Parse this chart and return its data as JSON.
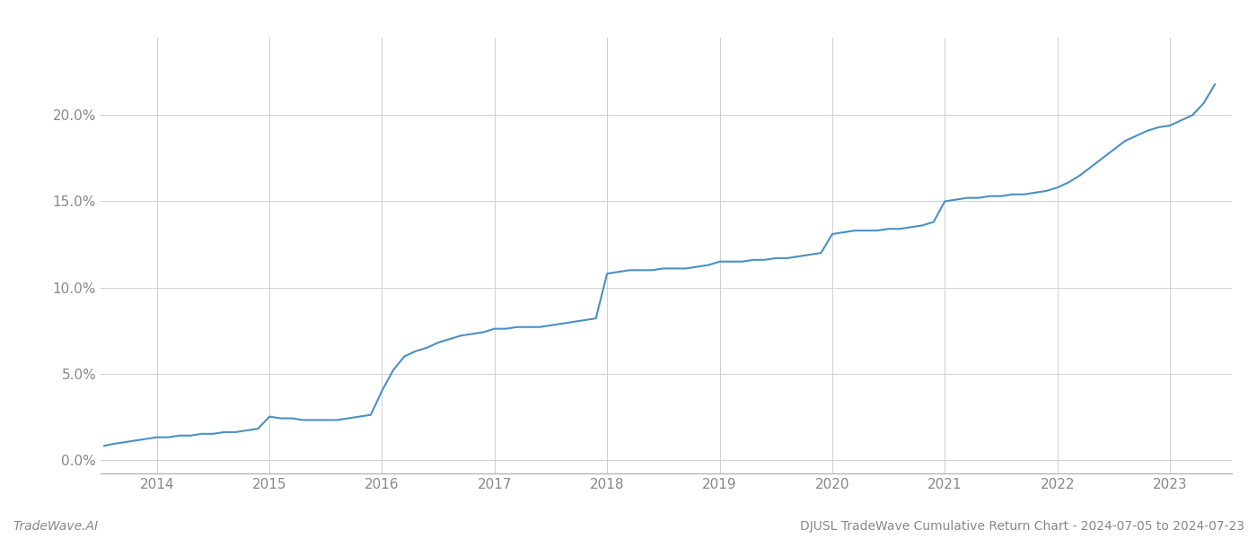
{
  "title_right": "DJUSL TradeWave Cumulative Return Chart - 2024-07-05 to 2024-07-23",
  "title_left": "TradeWave.AI",
  "line_color": "#4a90c4",
  "background_color": "#ffffff",
  "grid_color": "#d0d0d0",
  "x_years": [
    2014,
    2015,
    2016,
    2017,
    2018,
    2019,
    2020,
    2021,
    2022,
    2023
  ],
  "x_data": [
    2013.53,
    2013.6,
    2013.7,
    2013.8,
    2013.9,
    2014.0,
    2014.1,
    2014.2,
    2014.3,
    2014.4,
    2014.5,
    2014.6,
    2014.7,
    2014.8,
    2014.9,
    2015.0,
    2015.1,
    2015.2,
    2015.3,
    2015.4,
    2015.5,
    2015.6,
    2015.7,
    2015.8,
    2015.9,
    2016.0,
    2016.1,
    2016.2,
    2016.3,
    2016.4,
    2016.5,
    2016.6,
    2016.7,
    2016.8,
    2016.9,
    2017.0,
    2017.1,
    2017.2,
    2017.3,
    2017.4,
    2017.5,
    2017.6,
    2017.7,
    2017.8,
    2017.9,
    2018.0,
    2018.1,
    2018.2,
    2018.3,
    2018.4,
    2018.5,
    2018.6,
    2018.7,
    2018.8,
    2018.9,
    2019.0,
    2019.1,
    2019.2,
    2019.3,
    2019.4,
    2019.5,
    2019.6,
    2019.7,
    2019.8,
    2019.9,
    2020.0,
    2020.1,
    2020.2,
    2020.3,
    2020.4,
    2020.5,
    2020.6,
    2020.7,
    2020.8,
    2020.9,
    2021.0,
    2021.1,
    2021.2,
    2021.3,
    2021.4,
    2021.5,
    2021.6,
    2021.7,
    2021.8,
    2021.9,
    2022.0,
    2022.1,
    2022.2,
    2022.3,
    2022.4,
    2022.5,
    2022.6,
    2022.7,
    2022.8,
    2022.9,
    2023.0,
    2023.1,
    2023.2,
    2023.3,
    2023.4
  ],
  "y_data": [
    0.008,
    0.009,
    0.01,
    0.011,
    0.012,
    0.013,
    0.013,
    0.014,
    0.014,
    0.015,
    0.015,
    0.016,
    0.016,
    0.017,
    0.018,
    0.025,
    0.024,
    0.024,
    0.023,
    0.023,
    0.023,
    0.023,
    0.024,
    0.025,
    0.026,
    0.04,
    0.052,
    0.06,
    0.063,
    0.065,
    0.068,
    0.07,
    0.072,
    0.073,
    0.074,
    0.076,
    0.076,
    0.077,
    0.077,
    0.077,
    0.078,
    0.079,
    0.08,
    0.081,
    0.082,
    0.108,
    0.109,
    0.11,
    0.11,
    0.11,
    0.111,
    0.111,
    0.111,
    0.112,
    0.113,
    0.115,
    0.115,
    0.115,
    0.116,
    0.116,
    0.117,
    0.117,
    0.118,
    0.119,
    0.12,
    0.131,
    0.132,
    0.133,
    0.133,
    0.133,
    0.134,
    0.134,
    0.135,
    0.136,
    0.138,
    0.15,
    0.151,
    0.152,
    0.152,
    0.153,
    0.153,
    0.154,
    0.154,
    0.155,
    0.156,
    0.158,
    0.161,
    0.165,
    0.17,
    0.175,
    0.18,
    0.185,
    0.188,
    0.191,
    0.193,
    0.194,
    0.197,
    0.2,
    0.207,
    0.218
  ],
  "ylim": [
    -0.008,
    0.245
  ],
  "xlim": [
    2013.5,
    2023.55
  ],
  "yticks": [
    0.0,
    0.05,
    0.1,
    0.15,
    0.2
  ],
  "ytick_labels": [
    "0.0%",
    "5.0%",
    "10.0%",
    "15.0%",
    "20.0%"
  ],
  "line_width": 1.5,
  "tick_color": "#888888",
  "label_fontsize": 11,
  "footer_fontsize": 10
}
